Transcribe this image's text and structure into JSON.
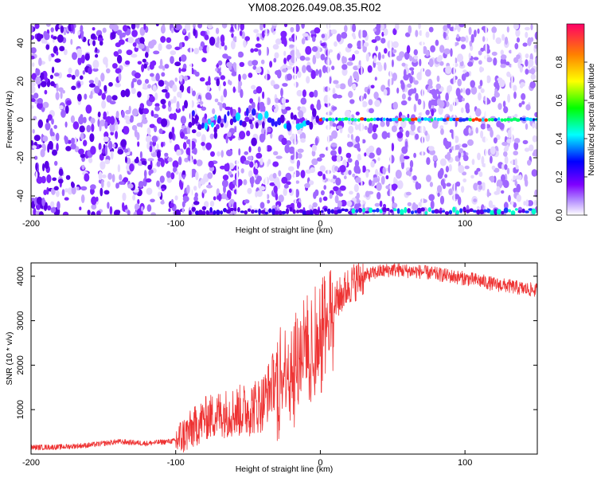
{
  "title": "YM08.2026.049.08.35.R02",
  "chart_data": [
    {
      "type": "heatmap",
      "title": "",
      "xlabel": "Height of straight line (km)",
      "ylabel": "Frequency (Hz)",
      "xlim": [
        -200,
        150
      ],
      "ylim": [
        -50,
        50
      ],
      "x_ticks": [
        "-200",
        "-100",
        "0",
        "100"
      ],
      "y_ticks": [
        "-40",
        "-20",
        "0",
        "20",
        "40"
      ],
      "colorbar": {
        "label": "Normalized spectral amplitude",
        "range": [
          0,
          1
        ],
        "ticks": [
          "0.0",
          "0.2",
          "0.4",
          "0.6",
          "0.8"
        ],
        "colors": [
          "#ffffff",
          "#7f00ff",
          "#0000ff",
          "#00ffff",
          "#00ff00",
          "#ffff00",
          "#ff8000",
          "#ff0040"
        ]
      },
      "features": {
        "carrier_line_hz": 0,
        "carrier_start_km": -90,
        "strong_carrier_start_km": 0,
        "lower_edge_band_hz": -48
      }
    },
    {
      "type": "line",
      "title": "",
      "xlabel": "Height of straight line (km)",
      "ylabel": "SNR (10 * v/v)",
      "xlim": [
        -200,
        150
      ],
      "ylim": [
        0,
        4300
      ],
      "x_ticks": [
        "-200",
        "-100",
        "0",
        "100"
      ],
      "y_ticks": [
        "1000",
        "2000",
        "3000",
        "4000"
      ],
      "color": "#ee3333",
      "series": [
        {
          "x": [
            -200,
            -180,
            -160,
            -140,
            -120,
            -100,
            -90,
            -80,
            -70,
            -60,
            -50,
            -40,
            -30,
            -20,
            -10,
            0,
            10,
            20,
            30,
            40,
            50,
            60,
            70,
            80,
            90,
            100,
            110,
            120,
            130,
            140,
            150
          ],
          "values": [
            150,
            160,
            200,
            280,
            240,
            300,
            520,
            800,
            900,
            950,
            1000,
            1150,
            1800,
            2100,
            2600,
            2900,
            3400,
            3800,
            4000,
            4100,
            4150,
            4120,
            4100,
            4050,
            4000,
            3950,
            3900,
            3820,
            3780,
            3720,
            3680
          ]
        }
      ]
    }
  ]
}
